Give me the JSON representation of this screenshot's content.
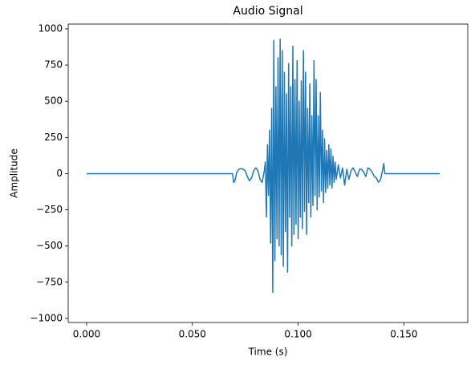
{
  "chart_data": {
    "type": "line",
    "title": "Audio Signal",
    "xlabel": "Time (s)",
    "ylabel": "Amplitude",
    "color": "#1f77b4",
    "x": [
      0,
      0.069,
      0.0695,
      0.07,
      0.071,
      0.072,
      0.073,
      0.074,
      0.075,
      0.076,
      0.077,
      0.078,
      0.079,
      0.08,
      0.081,
      0.082,
      0.083,
      0.084,
      0.0845,
      0.085,
      0.0855,
      0.086,
      0.0865,
      0.087,
      0.0875,
      0.088,
      0.0885,
      0.089,
      0.0895,
      0.09,
      0.0905,
      0.091,
      0.0915,
      0.092,
      0.0925,
      0.093,
      0.0935,
      0.094,
      0.0945,
      0.095,
      0.0955,
      0.096,
      0.0965,
      0.097,
      0.0975,
      0.098,
      0.0985,
      0.099,
      0.0995,
      0.1,
      0.1005,
      0.101,
      0.1015,
      0.102,
      0.1025,
      0.103,
      0.1035,
      0.104,
      0.1045,
      0.105,
      0.1055,
      0.106,
      0.1065,
      0.107,
      0.1075,
      0.108,
      0.1085,
      0.109,
      0.1095,
      0.11,
      0.1105,
      0.111,
      0.1115,
      0.112,
      0.1125,
      0.113,
      0.1135,
      0.114,
      0.1145,
      0.115,
      0.1155,
      0.116,
      0.1165,
      0.117,
      0.1175,
      0.118,
      0.119,
      0.12,
      0.121,
      0.122,
      0.123,
      0.124,
      0.125,
      0.126,
      0.127,
      0.128,
      0.129,
      0.13,
      0.131,
      0.132,
      0.133,
      0.134,
      0.135,
      0.136,
      0.137,
      0.138,
      0.139,
      0.14,
      0.1405,
      0.141,
      0.167
    ],
    "values": [
      0,
      0,
      -60,
      -55,
      10,
      30,
      35,
      30,
      20,
      -20,
      -50,
      -30,
      20,
      40,
      20,
      -40,
      -60,
      20,
      80,
      -300,
      200,
      -150,
      300,
      -480,
      450,
      -820,
      920,
      -600,
      600,
      -450,
      800,
      -500,
      930,
      -560,
      850,
      -640,
      700,
      -400,
      550,
      -680,
      760,
      -300,
      600,
      -500,
      880,
      -420,
      650,
      -350,
      780,
      -450,
      500,
      -300,
      640,
      -380,
      850,
      -260,
      700,
      -420,
      450,
      -200,
      620,
      -300,
      400,
      -220,
      780,
      -150,
      650,
      -250,
      400,
      -160,
      560,
      -120,
      300,
      -200,
      240,
      -130,
      160,
      -100,
      200,
      -80,
      170,
      -100,
      120,
      -60,
      80,
      -40,
      60,
      -30,
      40,
      -80,
      30,
      -40,
      20,
      40,
      10,
      -20,
      30,
      30,
      10,
      -20,
      40,
      30,
      10,
      -20,
      -30,
      -60,
      -40,
      30,
      70,
      0,
      0
    ],
    "xlim": [
      -0.0087,
      0.1802
    ],
    "ylim": [
      -1028,
      1033
    ],
    "xticks": [
      {
        "value": 0,
        "label": "0.000"
      },
      {
        "value": 0.05,
        "label": "0.050"
      },
      {
        "value": 0.1,
        "label": "0.100"
      },
      {
        "value": 0.15,
        "label": "0.150"
      }
    ],
    "yticks": [
      {
        "value": -1000,
        "label": "−1000"
      },
      {
        "value": -750,
        "label": "−750"
      },
      {
        "value": -500,
        "label": "−500"
      },
      {
        "value": -250,
        "label": "−250"
      },
      0,
      250,
      500,
      750,
      1000
    ]
  }
}
